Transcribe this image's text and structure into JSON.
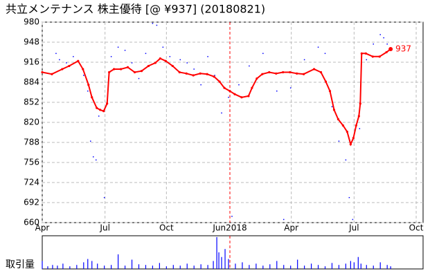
{
  "chart_data": {
    "type": "line",
    "title": "共立メンテナンス  株主優待  [@ ¥937] (20180821)",
    "xlim": [
      0,
      552
    ],
    "ylim": [
      660,
      980
    ],
    "yticks": [
      660,
      692,
      724,
      756,
      788,
      820,
      852,
      884,
      916,
      948,
      980
    ],
    "xticks": [
      {
        "value": 0,
        "label": "Apr"
      },
      {
        "value": 91,
        "label": "Jul"
      },
      {
        "value": 180,
        "label": "Oct"
      },
      {
        "value": 272,
        "label": "Jun2018"
      },
      {
        "value": 361,
        "label": "Apr"
      },
      {
        "value": 452,
        "label": "Jul"
      },
      {
        "value": 542,
        "label": "Oct"
      }
    ],
    "grid": true,
    "year_line": 272,
    "end_label": 937,
    "series": [
      {
        "name": "price",
        "color": "#ff0000",
        "x": [
          0,
          14,
          29,
          39,
          52,
          59,
          67,
          72,
          79,
          84,
          89,
          94,
          97,
          104,
          114,
          124,
          134,
          144,
          154,
          164,
          171,
          179,
          189,
          199,
          209,
          219,
          229,
          239,
          249,
          257,
          264,
          272,
          279,
          289,
          299,
          304,
          311,
          319,
          329,
          339,
          349,
          359,
          369,
          379,
          394,
          404,
          411,
          417,
          423,
          429,
          436,
          442,
          447,
          451,
          455,
          459,
          461,
          463,
          469,
          479,
          489,
          499,
          505
        ],
        "values": [
          900,
          897,
          905,
          910,
          918,
          905,
          880,
          860,
          843,
          840,
          838,
          850,
          900,
          905,
          905,
          908,
          900,
          902,
          910,
          915,
          922,
          918,
          910,
          900,
          898,
          895,
          898,
          897,
          893,
          885,
          875,
          870,
          865,
          860,
          862,
          875,
          890,
          897,
          900,
          898,
          900,
          900,
          898,
          897,
          905,
          900,
          885,
          870,
          840,
          825,
          815,
          805,
          785,
          795,
          815,
          830,
          850,
          930,
          930,
          925,
          925,
          932,
          937
        ]
      },
      {
        "name": "trades",
        "color": "#0000ff",
        "x": [
          20,
          25,
          35,
          45,
          60,
          66,
          70,
          74,
          78,
          82,
          90,
          100,
          110,
          120,
          130,
          140,
          150,
          160,
          166,
          175,
          185,
          200,
          210,
          220,
          230,
          240,
          250,
          260,
          270,
          275,
          285,
          300,
          320,
          340,
          350,
          360,
          380,
          400,
          410,
          420,
          430,
          440,
          445,
          450,
          460,
          470,
          480,
          490,
          495,
          500
        ],
        "values": [
          930,
          920,
          915,
          925,
          895,
          870,
          790,
          765,
          760,
          830,
          700,
          925,
          940,
          935,
          915,
          890,
          930,
          978,
          975,
          940,
          925,
          920,
          915,
          905,
          880,
          925,
          895,
          835,
          860,
          670,
          880,
          910,
          930,
          870,
          665,
          875,
          920,
          940,
          930,
          845,
          790,
          760,
          700,
          665,
          810,
          920,
          945,
          960,
          955,
          945
        ]
      }
    ],
    "volume": {
      "label": "取引量",
      "color": "#0000ff",
      "vlim": [
        0,
        50
      ],
      "x": [
        0,
        8,
        15,
        22,
        30,
        40,
        50,
        60,
        66,
        72,
        80,
        90,
        100,
        110,
        120,
        130,
        140,
        150,
        160,
        170,
        180,
        190,
        200,
        210,
        220,
        230,
        240,
        248,
        253,
        256,
        260,
        265,
        270,
        280,
        290,
        300,
        310,
        320,
        330,
        340,
        350,
        360,
        370,
        380,
        390,
        400,
        410,
        420,
        430,
        440,
        447,
        452,
        458,
        462,
        470,
        480,
        490,
        500,
        505
      ],
      "values": [
        12,
        4,
        6,
        5,
        8,
        4,
        6,
        10,
        15,
        12,
        8,
        5,
        6,
        22,
        5,
        14,
        7,
        6,
        5,
        9,
        4,
        6,
        5,
        8,
        5,
        7,
        6,
        12,
        48,
        25,
        18,
        30,
        15,
        8,
        10,
        6,
        8,
        5,
        7,
        12,
        6,
        5,
        14,
        5,
        8,
        6,
        4,
        9,
        6,
        8,
        12,
        10,
        18,
        8,
        6,
        5,
        10,
        6,
        4
      ]
    }
  }
}
